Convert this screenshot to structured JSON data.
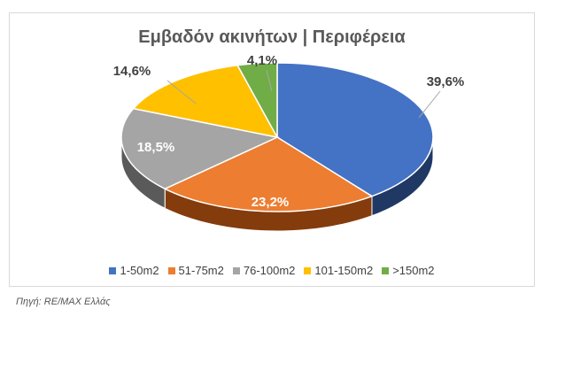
{
  "chart_data": {
    "type": "pie",
    "title": "Εμβαδόν ακινήτων | Περιφέρεια",
    "slices": [
      {
        "label": "1-50m2",
        "value": 39.6,
        "value_label": "39,6%",
        "color": "#4472C4",
        "side_color": "#203864",
        "label_color": "#404040"
      },
      {
        "label": "51-75m2",
        "value": 23.2,
        "value_label": "23,2%",
        "color": "#ED7D31",
        "side_color": "#843C0C",
        "label_color": "#ffffff"
      },
      {
        "label": "76-100m2",
        "value": 18.5,
        "value_label": "18,5%",
        "color": "#A5A5A5",
        "side_color": "#5a5a5a",
        "label_color": "#ffffff"
      },
      {
        "label": "101-150m2",
        "value": 14.6,
        "value_label": "14,6%",
        "color": "#FFC000",
        "side_color": "#8a6800",
        "label_color": "#404040"
      },
      {
        "label": ">150m2",
        "value": 4.1,
        "value_label": "4,1%",
        "color": "#70AD47",
        "side_color": "#375623",
        "label_color": "#404040"
      }
    ],
    "legend_position": "bottom"
  },
  "source_note": "Πηγή: RE/MAX Ελλάς"
}
